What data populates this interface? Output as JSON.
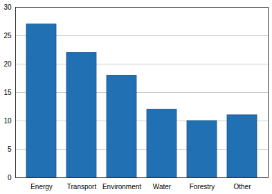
{
  "chart_data": {
    "type": "bar",
    "categories": [
      "Energy",
      "Transport",
      "Environment",
      "Water",
      "Forestry",
      "Other"
    ],
    "values": [
      27,
      22,
      18,
      12,
      10,
      11
    ],
    "color": "#2270b4",
    "ylim": [
      0,
      30
    ],
    "yticks": [
      0,
      5,
      10,
      15,
      20,
      25,
      30
    ],
    "grid": true
  }
}
